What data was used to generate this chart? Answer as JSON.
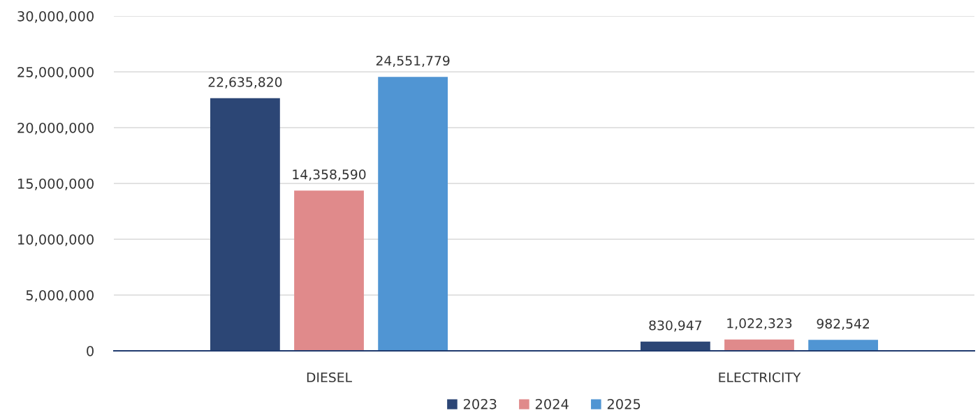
{
  "chart_data": {
    "type": "bar",
    "categories": [
      "DIESEL",
      "ELECTRICITY"
    ],
    "series": [
      {
        "name": "2023",
        "color": "#2c4675",
        "values": [
          22635820,
          830947
        ],
        "value_labels": [
          "22,635,820",
          "830,947"
        ]
      },
      {
        "name": "2024",
        "color": "#e08a8b",
        "values": [
          14358590,
          1022323
        ],
        "value_labels": [
          "14,358,590",
          "1,022,323"
        ]
      },
      {
        "name": "2025",
        "color": "#5095d3",
        "values": [
          24551779,
          982542
        ],
        "value_labels": [
          "24,551,779",
          "982,542"
        ]
      }
    ],
    "ylim": [
      0,
      30000000
    ],
    "yticks": [
      {
        "value": 0,
        "label": "0"
      },
      {
        "value": 5000000,
        "label": "5,000,000"
      },
      {
        "value": 10000000,
        "label": "10,000,000"
      },
      {
        "value": 15000000,
        "label": "15,000,000"
      },
      {
        "value": 20000000,
        "label": "20,000,000"
      },
      {
        "value": 25000000,
        "label": "25,000,000"
      },
      {
        "value": 30000000,
        "label": "30,000,000"
      }
    ],
    "grid": "y",
    "legend": "bottom"
  }
}
